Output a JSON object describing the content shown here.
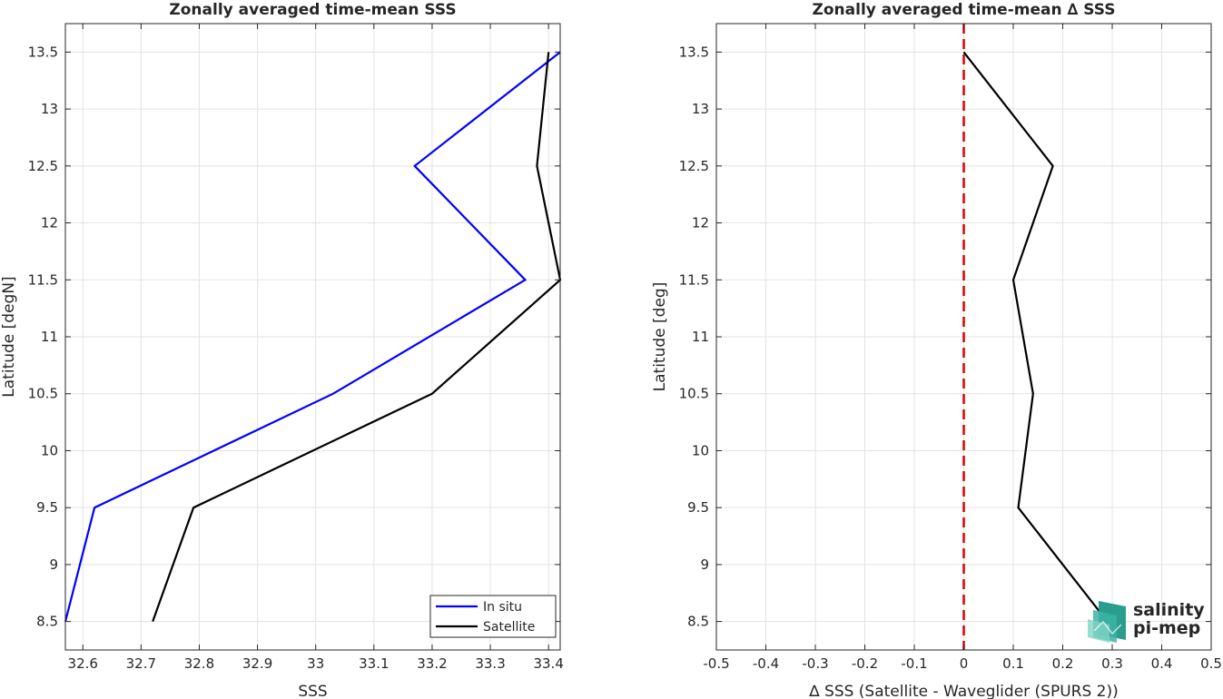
{
  "chart_data": [
    {
      "type": "line",
      "title": "Zonally averaged time-mean SSS",
      "xlabel": "SSS",
      "ylabel": "Latitude [degN]",
      "xlim": [
        32.57,
        33.42
      ],
      "ylim": [
        8.25,
        13.75
      ],
      "xticks": [
        "32.6",
        "32.7",
        "32.8",
        "32.9",
        "33",
        "33.1",
        "33.2",
        "33.3",
        "33.4"
      ],
      "xtick_values": [
        32.6,
        32.7,
        32.8,
        32.9,
        33.0,
        33.1,
        33.2,
        33.3,
        33.4
      ],
      "yticks": [
        "8.5",
        "9",
        "9.5",
        "10",
        "10.5",
        "11",
        "11.5",
        "12",
        "12.5",
        "13",
        "13.5"
      ],
      "ytick_values": [
        8.5,
        9,
        9.5,
        10,
        10.5,
        11,
        11.5,
        12,
        12.5,
        13,
        13.5
      ],
      "grid": true,
      "legend": "bottom-right",
      "series": [
        {
          "name": "In situ",
          "color": "#0000ff",
          "x": [
            32.57,
            32.62,
            33.03,
            33.36,
            33.17,
            33.42
          ],
          "y": [
            8.5,
            9.5,
            10.5,
            11.5,
            12.5,
            13.5
          ]
        },
        {
          "name": "Satellite",
          "color": "#000000",
          "x": [
            32.72,
            32.79,
            33.2,
            33.42,
            33.38,
            33.4
          ],
          "y": [
            8.5,
            9.5,
            10.5,
            11.5,
            12.5,
            13.5
          ]
        }
      ]
    },
    {
      "type": "line",
      "title": "Zonally averaged time-mean ∆ SSS",
      "xlabel": "∆ SSS (Satellite - Waveglider (SPURS 2))",
      "ylabel": "Latitude [deg]",
      "xlim": [
        -0.5,
        0.5
      ],
      "ylim": [
        8.25,
        13.75
      ],
      "xticks": [
        "-0.5",
        "-0.4",
        "-0.3",
        "-0.2",
        "-0.1",
        "0",
        "0.1",
        "0.2",
        "0.3",
        "0.4",
        "0.5"
      ],
      "xtick_values": [
        -0.5,
        -0.4,
        -0.3,
        -0.2,
        -0.1,
        0,
        0.1,
        0.2,
        0.3,
        0.4,
        0.5
      ],
      "yticks": [
        "8.5",
        "9",
        "9.5",
        "10",
        "10.5",
        "11",
        "11.5",
        "12",
        "12.5",
        "13",
        "13.5"
      ],
      "ytick_values": [
        8.5,
        9,
        9.5,
        10,
        10.5,
        11,
        11.5,
        12,
        12.5,
        13,
        13.5
      ],
      "grid": true,
      "reference_line": {
        "x": 0,
        "color": "#dd0000",
        "style": "dashed"
      },
      "series": [
        {
          "color": "#000000",
          "x": [
            0.29,
            0.11,
            0.14,
            0.1,
            0.18,
            0.0
          ],
          "y": [
            8.5,
            9.5,
            10.5,
            11.5,
            12.5,
            13.5
          ]
        }
      ]
    }
  ],
  "logo": {
    "line1": "salinity",
    "line2": "pi-mep",
    "color_primary": "#2a9d8f",
    "color_secondary": "#1f6f66"
  }
}
